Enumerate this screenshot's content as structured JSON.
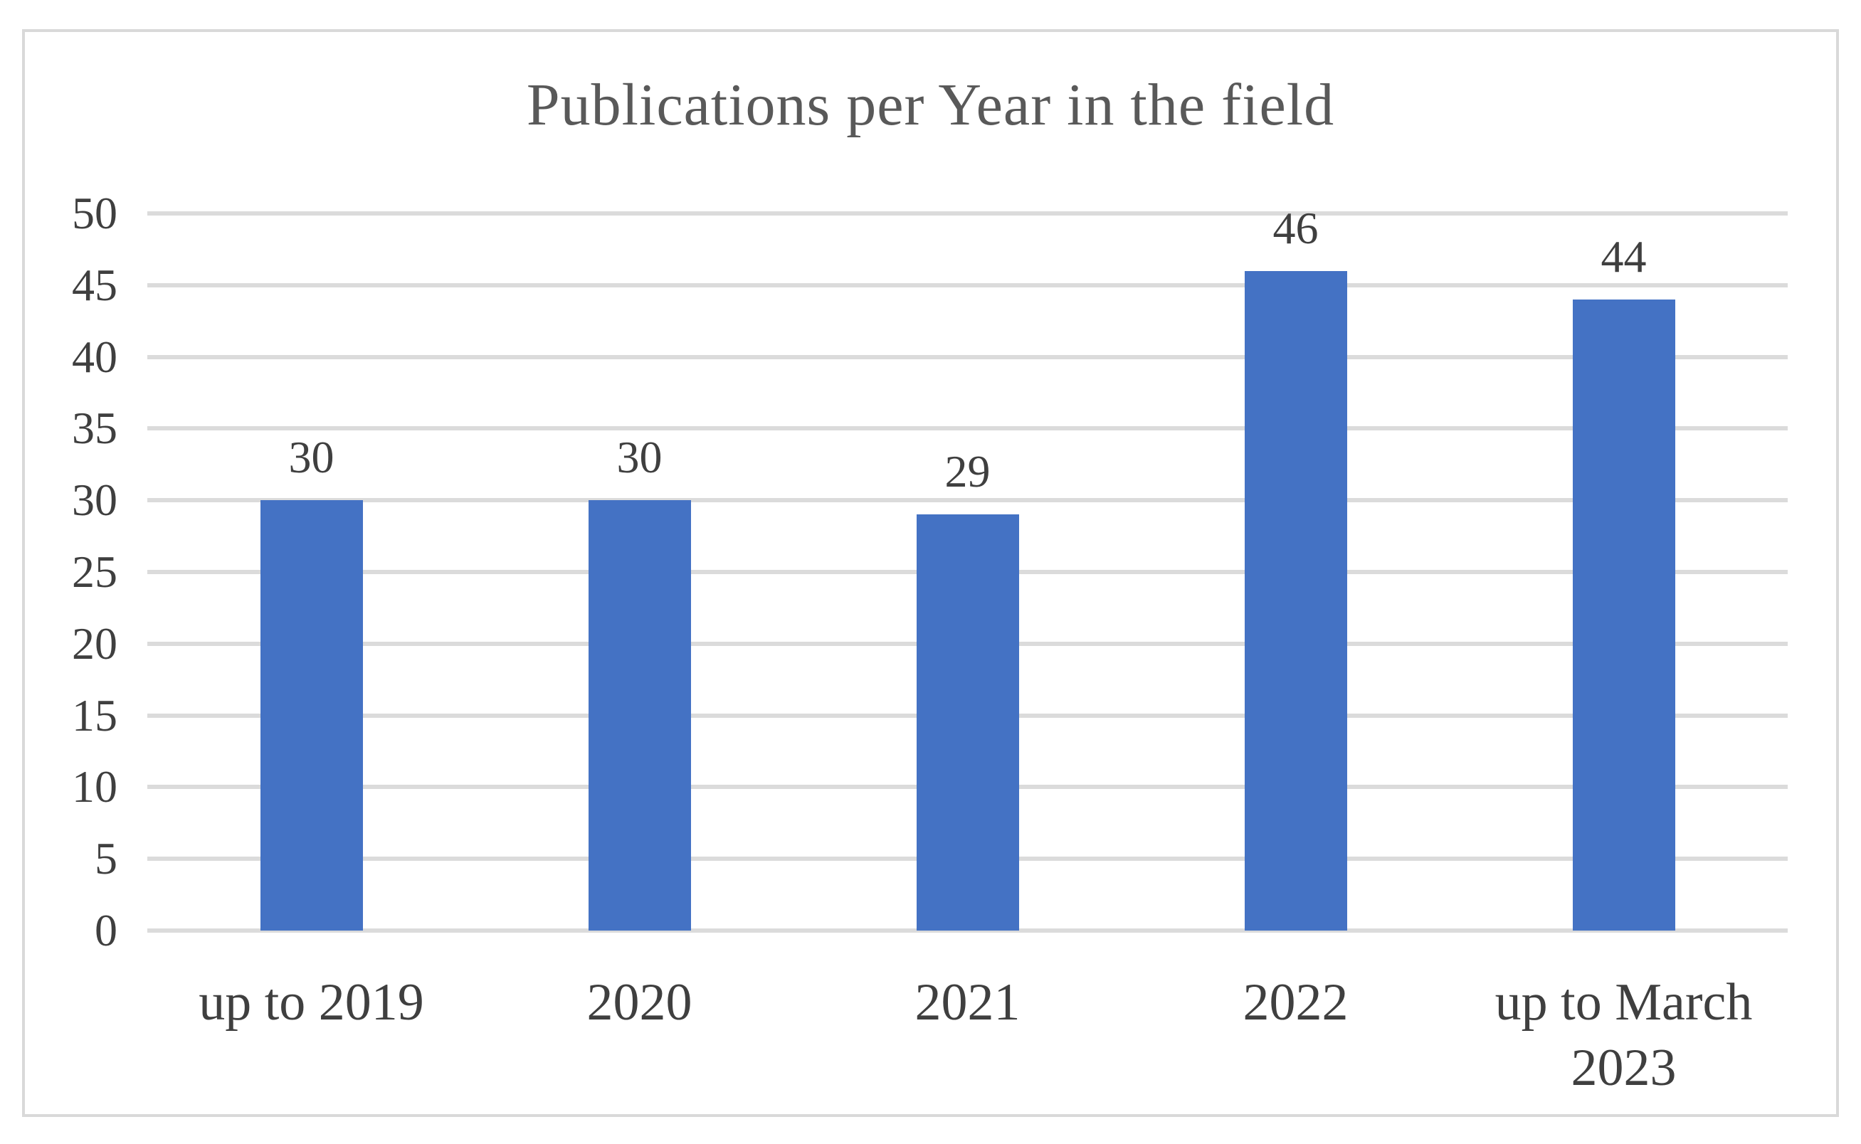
{
  "chart_data": {
    "type": "bar",
    "title": "Publications per Year in the field",
    "categories": [
      "up to 2019",
      "2020",
      "2021",
      "2022",
      "up to March 2023"
    ],
    "values": [
      30,
      30,
      29,
      46,
      44
    ],
    "data_labels": [
      "30",
      "30",
      "29",
      "46",
      "44"
    ],
    "xlabel": "",
    "ylabel": "",
    "ylim": [
      0,
      50
    ],
    "ytick_step": 5,
    "ytick_labels": [
      "0",
      "5",
      "10",
      "15",
      "20",
      "25",
      "30",
      "35",
      "40",
      "45",
      "50"
    ],
    "grid": true,
    "legend": "none",
    "colors": {
      "bar": "#4472C4",
      "gridline": "#DBDBDB",
      "frame_border": "#D9D9D9",
      "title_text": "#595959",
      "axis_text": "#3F3F3F",
      "background": "#FFFFFF"
    }
  }
}
